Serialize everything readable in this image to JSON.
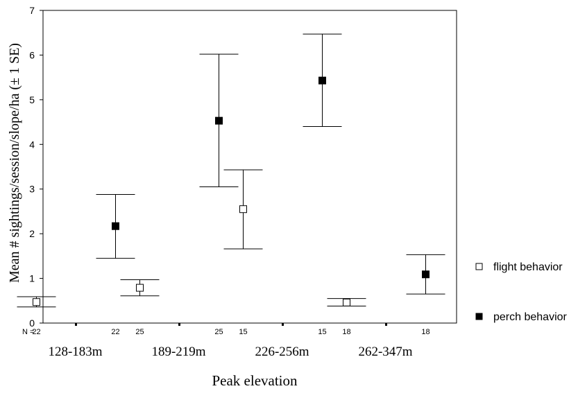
{
  "chart_data": {
    "type": "errorbar",
    "title": "",
    "xlabel": "Peak elevation",
    "ylabel": "Mean # sightings/session/slope/ha  (± 1 SE)",
    "ylim": [
      0,
      7
    ],
    "yticks": [
      "0",
      "1",
      "2",
      "3",
      "4",
      "5",
      "6",
      "7"
    ],
    "categories": [
      "128-183m",
      "189-219m",
      "226-256m",
      "262-347m"
    ],
    "n_label": "N =",
    "grid": false,
    "legend_position": "right",
    "series": [
      {
        "name": "flight behavior",
        "marker": "open-square",
        "color": "#000000",
        "n": [
          "22",
          "25",
          "15",
          "18"
        ],
        "mean": [
          0.47,
          0.79,
          2.55,
          0.46
        ],
        "lower": [
          0.36,
          0.61,
          1.66,
          0.38
        ],
        "upper": [
          0.59,
          0.97,
          3.43,
          0.55
        ]
      },
      {
        "name": "perch behavior",
        "marker": "filled-square",
        "color": "#000000",
        "n": [
          "22",
          "25",
          "15",
          "18"
        ],
        "mean": [
          2.17,
          4.53,
          5.43,
          1.09
        ],
        "lower": [
          1.45,
          3.05,
          4.4,
          0.65
        ],
        "upper": [
          2.88,
          6.02,
          6.47,
          1.53
        ]
      }
    ]
  }
}
